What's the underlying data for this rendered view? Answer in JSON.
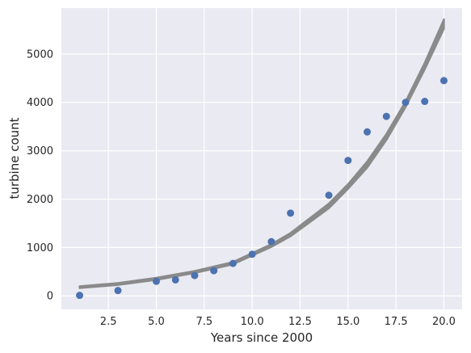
{
  "chart_data": {
    "type": "scatter",
    "xlabel": "Years since 2000",
    "ylabel": "turbine count",
    "xlim": [
      0.05,
      20.95
    ],
    "ylim": [
      -280,
      5950
    ],
    "xticks": [
      2.5,
      5.0,
      7.5,
      10.0,
      12.5,
      15.0,
      17.5,
      20.0
    ],
    "xtick_labels": [
      "2.5",
      "5.0",
      "7.5",
      "10.0",
      "12.5",
      "15.0",
      "17.5",
      "20.0"
    ],
    "yticks": [
      0,
      1000,
      2000,
      3000,
      4000,
      5000
    ],
    "ytick_labels": [
      "0",
      "1000",
      "2000",
      "3000",
      "4000",
      "5000"
    ],
    "grid": true,
    "background_color": "#eaeaf2",
    "grid_color": "#ffffff",
    "points": {
      "color": "#4c72b0",
      "x": [
        1,
        3,
        5,
        6,
        7,
        8,
        9,
        10,
        11,
        12,
        14,
        15,
        16,
        17,
        18,
        19,
        20
      ],
      "y": [
        10,
        110,
        300,
        330,
        420,
        520,
        670,
        860,
        1120,
        1710,
        2080,
        2800,
        3390,
        3710,
        4000,
        4020,
        4450
      ]
    },
    "fit_band": {
      "color": "#808080",
      "x": [
        1,
        3,
        5,
        7,
        9,
        11,
        12,
        14,
        15,
        16,
        17,
        18,
        19,
        20
      ],
      "lower": [
        160,
        225,
        330,
        470,
        650,
        1010,
        1230,
        1810,
        2210,
        2650,
        3220,
        3900,
        4680,
        5520
      ],
      "upper": [
        200,
        265,
        375,
        515,
        700,
        1070,
        1300,
        1910,
        2310,
        2780,
        3350,
        4020,
        4820,
        5720
      ]
    }
  }
}
